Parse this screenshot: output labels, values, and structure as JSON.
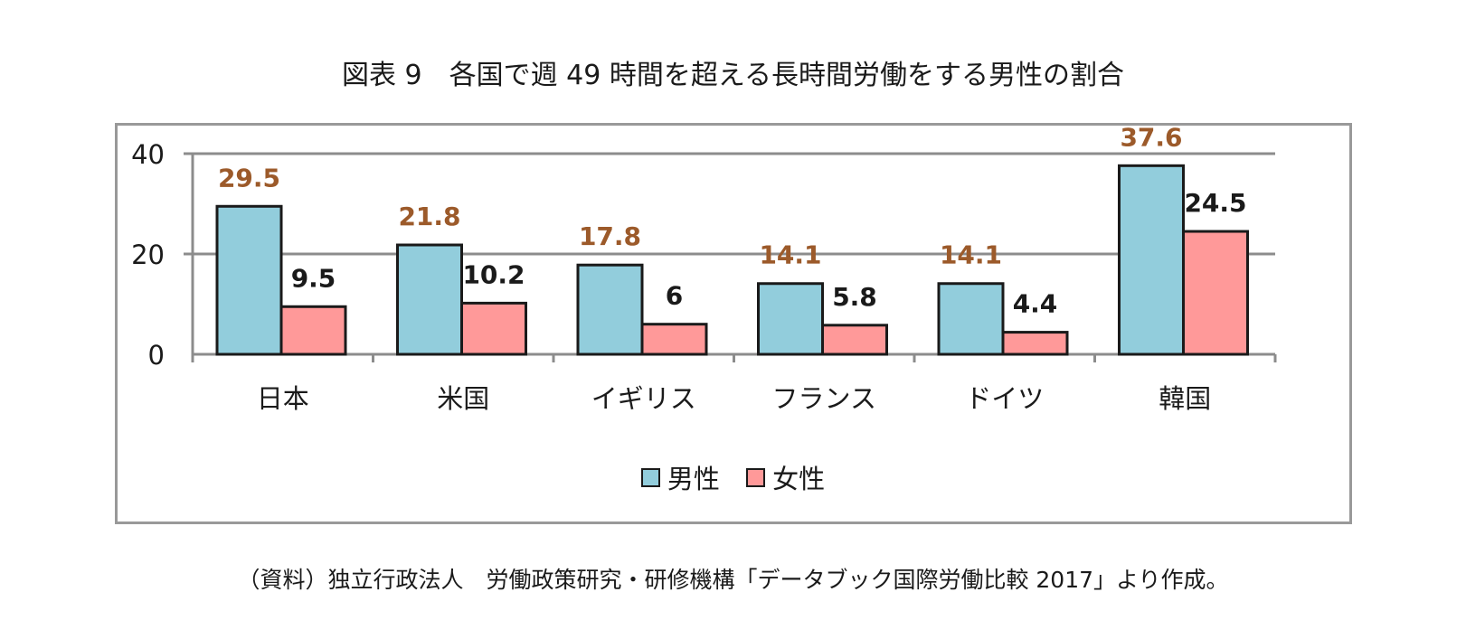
{
  "title": "図表 9　各国で週 49 時間を超える長時間労働をする男性の割合",
  "source": "（資料）独立行政法人　労働政策研究・研修機構「データブック国際労働比較 2017」より作成。",
  "colors": {
    "male_fill": "#92CDDC",
    "female_fill": "#FF9999",
    "male_label": "#9C5A2A",
    "female_label": "#1a1a1a",
    "grid": "#8c8c8c"
  },
  "chart_data": {
    "type": "bar",
    "title": "図表 9　各国で週 49 時間を超える長時間労働をする男性の割合",
    "xlabel": "",
    "ylabel": "",
    "categories": [
      "日本",
      "米国",
      "イギリス",
      "フランス",
      "ドイツ",
      "韓国"
    ],
    "series": [
      {
        "name": "男性",
        "values": [
          29.5,
          21.8,
          17.8,
          14.1,
          14.1,
          37.6
        ],
        "labels": [
          "29.5",
          "21.8",
          "17.8",
          "14.1",
          "14.1",
          "37.6"
        ]
      },
      {
        "name": "女性",
        "values": [
          9.5,
          10.2,
          6,
          5.8,
          4.4,
          24.5
        ],
        "labels": [
          "9.5",
          "10.2",
          "6",
          "5.8",
          "4.4",
          "24.5"
        ]
      }
    ],
    "yticks": [
      "0",
      "20",
      "40"
    ],
    "ylim": [
      0,
      40
    ],
    "grid": true,
    "legend": "bottom"
  }
}
